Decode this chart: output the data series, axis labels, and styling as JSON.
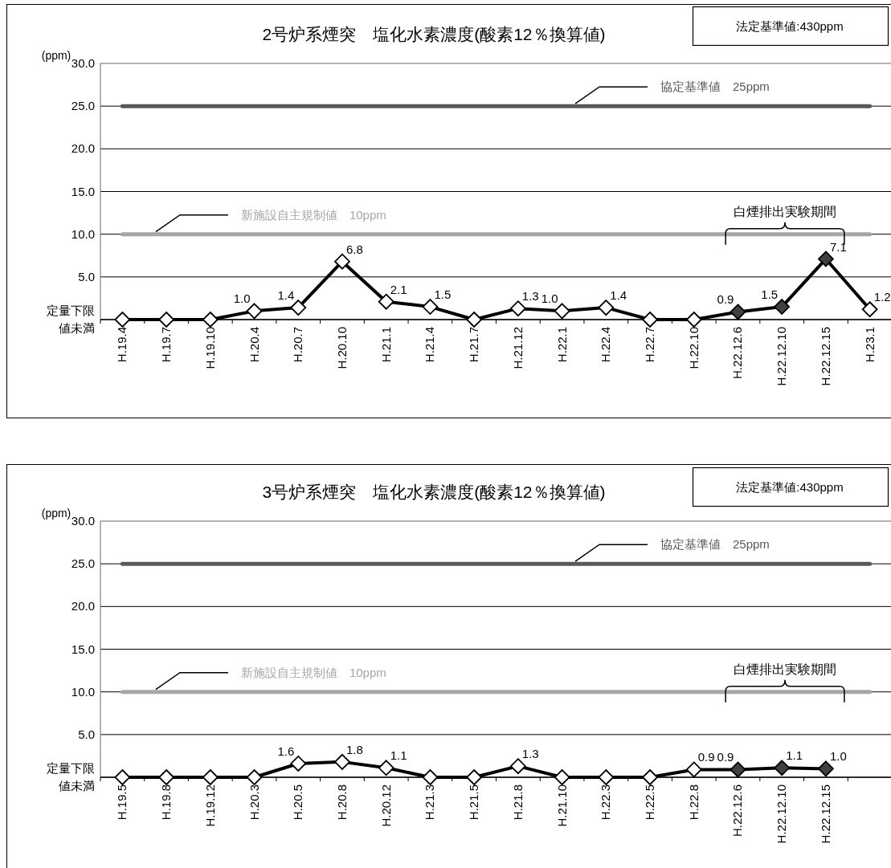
{
  "chart_data": [
    {
      "type": "line",
      "title": "2号炉系煙突　塩化水素濃度(酸素12％換算値)",
      "ylabel": "(ppm)",
      "annotations": [
        "法定基準値:430ppm",
        "白煙排出実験期間"
      ],
      "categories": [
        "H.19.4",
        "H.19.7",
        "H.19.10",
        "H.20.4",
        "H.20.7",
        "H.20.10",
        "H.21.1",
        "H.21.4",
        "H.21.7",
        "H.21.12",
        "H.22.1",
        "H.22.4",
        "H.22.7",
        "H.22.10",
        "H.22.12.6",
        "H.22.12.10",
        "H.22.12.15",
        "H.23.1"
      ],
      "series": [
        {
          "color": "#000000",
          "colors": [
            "#ffffff",
            "#ffffff",
            "#ffffff",
            "#ffffff",
            "#ffffff",
            "#ffffff",
            "#ffffff",
            "#ffffff",
            "#ffffff",
            "#ffffff",
            "#ffffff",
            "#ffffff",
            "#ffffff",
            "#ffffff",
            "#404040",
            "#404040",
            "#404040",
            "#ffffff"
          ],
          "values": [
            0,
            0,
            0,
            1.0,
            1.4,
            6.8,
            2.1,
            1.5,
            0,
            1.3,
            1.0,
            1.4,
            0,
            0,
            0.9,
            1.5,
            7.1,
            1.2
          ],
          "value_labels": [
            null,
            null,
            null,
            "1.0",
            "1.4",
            "6.8",
            "2.1",
            "1.5",
            null,
            "1.3",
            "1.0",
            "1.4",
            null,
            null,
            "0.9",
            "1.5",
            "7.1",
            "1.2"
          ]
        }
      ],
      "ylim": [
        0,
        30
      ],
      "yticks": [
        {
          "value": 0,
          "label": "定量下限値未満"
        },
        {
          "value": 5,
          "label": "5.0"
        },
        {
          "value": 10,
          "label": "10.0"
        },
        {
          "value": 15,
          "label": "15.0"
        },
        {
          "value": 20,
          "label": "20.0"
        },
        {
          "value": 25,
          "label": "25.0"
        },
        {
          "value": 30,
          "label": "30.0"
        }
      ],
      "ref_lines": [
        {
          "axis": "y",
          "value": 25,
          "label": "協定基準値　25ppm",
          "color": "#595959"
        },
        {
          "axis": "y",
          "value": 10,
          "label": "新施設自主規制値　10ppm",
          "color": "#a6a6a6"
        }
      ],
      "grid": "y",
      "marker": "diamond",
      "line_style": "solid"
    },
    {
      "type": "line",
      "title": "3号炉系煙突　塩化水素濃度(酸素12％換算値)",
      "ylabel": "(ppm)",
      "annotations": [
        "法定基準値:430ppm",
        "白煙排出実験期間"
      ],
      "categories": [
        "H.19.5",
        "H.19.8",
        "H.19.12",
        "H.20.3",
        "H.20.5",
        "H.20.8",
        "H.20.12",
        "H.21.3",
        "H.21.5",
        "H.21.8",
        "H.21.10",
        "H.22.3",
        "H.22.5",
        "H.22.8",
        "H.22.12.6",
        "H.22.12.10",
        "H.22.12.15",
        null
      ],
      "series": [
        {
          "color": "#000000",
          "colors": [
            "#ffffff",
            "#ffffff",
            "#ffffff",
            "#ffffff",
            "#ffffff",
            "#ffffff",
            "#ffffff",
            "#ffffff",
            "#ffffff",
            "#ffffff",
            "#ffffff",
            "#ffffff",
            "#ffffff",
            "#ffffff",
            "#404040",
            "#404040",
            "#404040",
            null
          ],
          "values": [
            0,
            0,
            0,
            0,
            1.6,
            1.8,
            1.1,
            0,
            0,
            1.3,
            0,
            0,
            0,
            0.9,
            0.9,
            1.1,
            1.0,
            null
          ],
          "value_labels": [
            null,
            null,
            null,
            null,
            "1.6",
            "1.8",
            "1.1",
            null,
            null,
            "1.3",
            null,
            null,
            null,
            "0.9",
            "0.9",
            "1.1",
            "1.0",
            null
          ]
        }
      ],
      "ylim": [
        0,
        30
      ],
      "yticks": [
        {
          "value": 0,
          "label": "定量下限値未満"
        },
        {
          "value": 5,
          "label": "5.0"
        },
        {
          "value": 10,
          "label": "10.0"
        },
        {
          "value": 15,
          "label": "15.0"
        },
        {
          "value": 20,
          "label": "20.0"
        },
        {
          "value": 25,
          "label": "25.0"
        },
        {
          "value": 30,
          "label": "30.0"
        }
      ],
      "ref_lines": [
        {
          "axis": "y",
          "value": 25,
          "label": "協定基準値　25ppm",
          "color": "#595959"
        },
        {
          "axis": "y",
          "value": 10,
          "label": "新施設自主規制値　10ppm",
          "color": "#a6a6a6"
        }
      ],
      "grid": "y",
      "marker": "diamond",
      "line_style": "solid"
    }
  ]
}
